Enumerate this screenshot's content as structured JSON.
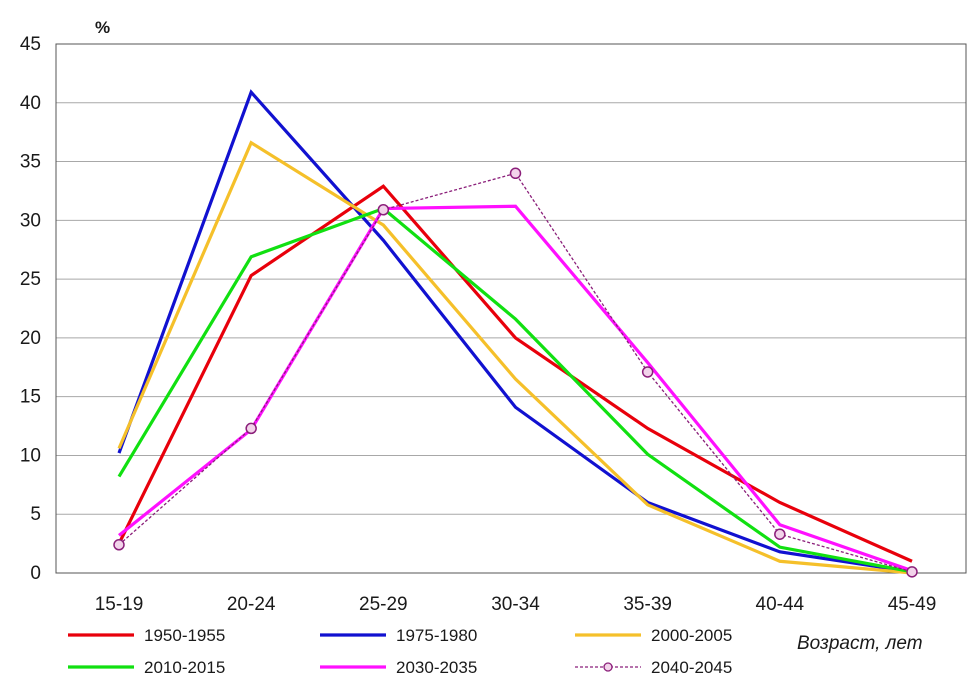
{
  "chart_data": {
    "type": "line",
    "title": "",
    "ylabel": "%",
    "xlabel": "Возраст, лет",
    "categories": [
      "15-19",
      "20-24",
      "25-29",
      "30-34",
      "35-39",
      "40-44",
      "45-49"
    ],
    "ylim": [
      0,
      45
    ],
    "yticks": [
      "0",
      "5",
      "10",
      "15",
      "20",
      "25",
      "30",
      "35",
      "40",
      "45"
    ],
    "grid": true,
    "legend_position": "bottom",
    "series": [
      {
        "name": "1950-1955",
        "color": "#e8000b",
        "style": "solid",
        "values": [
          2.5,
          25.3,
          32.9,
          20.0,
          12.3,
          6.0,
          1.0
        ]
      },
      {
        "name": "1975-1980",
        "color": "#1111d0",
        "style": "solid",
        "values": [
          10.2,
          40.9,
          28.3,
          14.1,
          6.0,
          1.8,
          0.1
        ]
      },
      {
        "name": "2000-2005",
        "color": "#f5c02a",
        "style": "solid",
        "values": [
          10.6,
          36.6,
          29.6,
          16.5,
          5.8,
          1.0,
          0.0
        ]
      },
      {
        "name": "2010-2015",
        "color": "#11e011",
        "style": "solid",
        "values": [
          8.2,
          26.9,
          31.0,
          21.6,
          10.1,
          2.2,
          0.1
        ]
      },
      {
        "name": "2030-2035",
        "color": "#ff10ff",
        "style": "solid",
        "values": [
          3.2,
          12.2,
          31.0,
          31.2,
          17.9,
          4.1,
          0.2
        ]
      },
      {
        "name": "2040-2045",
        "color": "#8b1f7a",
        "style": "dashed-marker",
        "values": [
          2.4,
          12.3,
          30.9,
          34.0,
          17.1,
          3.3,
          0.1
        ]
      }
    ]
  }
}
